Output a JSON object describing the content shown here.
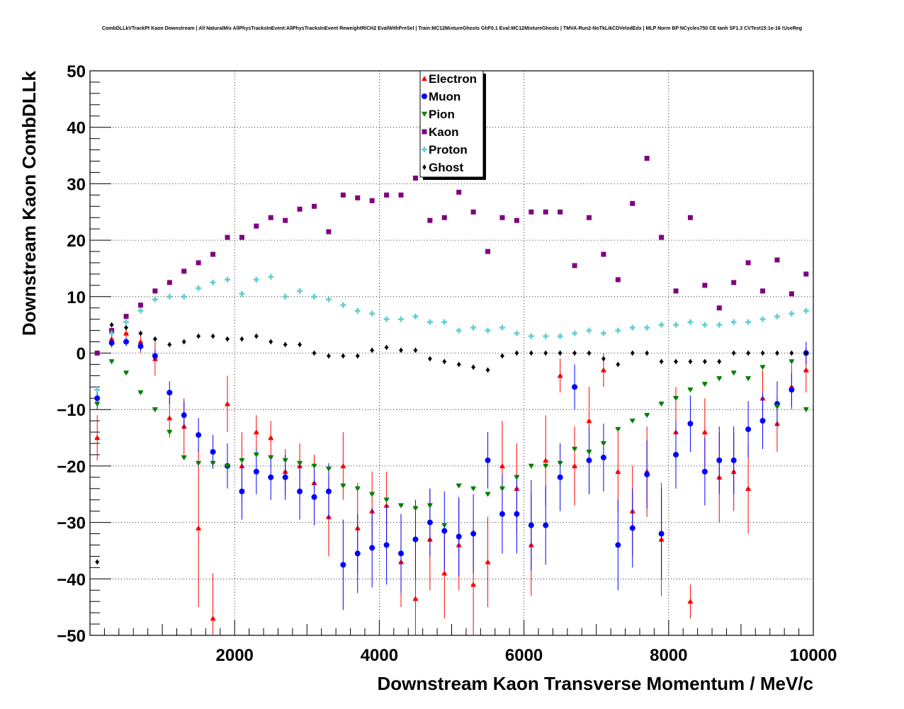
{
  "chart_data": {
    "type": "scatter",
    "title": "CombDLLkVTrackPt Kaon Downstream | All NaturalMix AllPhysTracksInEvent:AllPhysTracksInEvent ReweightRICH2 EvalWithPreSel | Train:MC12MixtureGhosts GhF0.1 Eval:MC12MixtureGhosts | TMVA-Run2-NoTkLikCDVelodEdx | MLP Norm BP NCycles750 CE tanh SF1.3 CVTest15:1e-16 !UseReg",
    "xlabel": "Downstream Kaon Transverse Momentum / MeV/c",
    "ylabel": "Downstream Kaon CombDLLk",
    "xlim": [
      0,
      10000
    ],
    "ylim": [
      -50,
      50
    ],
    "x_ticks": [
      "2000",
      "4000",
      "6000",
      "8000",
      "10000"
    ],
    "y_ticks": [
      "−50",
      "−40",
      "−30",
      "−20",
      "−10",
      "0",
      "10",
      "20",
      "30",
      "40",
      "50"
    ],
    "grid": true,
    "legend_position": "top-center",
    "series": [
      {
        "name": "Electron",
        "color": "#ff0000",
        "marker": "triangle-up",
        "x": [
          100,
          300,
          500,
          700,
          900,
          1100,
          1300,
          1500,
          1700,
          1900,
          2100,
          2300,
          2500,
          2700,
          2900,
          3100,
          3300,
          3500,
          3700,
          3900,
          4100,
          4300,
          4500,
          4700,
          4900,
          5100,
          5300,
          5500,
          5700,
          5900,
          6100,
          6300,
          6500,
          6700,
          6900,
          7100,
          7300,
          7500,
          7700,
          7900,
          8100,
          8300,
          8500,
          8700,
          8900,
          9100,
          9300,
          9500,
          9700,
          9900
        ],
        "y": [
          -15,
          2.5,
          3.5,
          2,
          -1,
          -11.5,
          -13,
          -31,
          -47,
          -9,
          -20,
          -14,
          -15,
          -21,
          -20,
          -23,
          -29,
          -20,
          -31,
          -28,
          -27,
          -37,
          -43.5,
          -33,
          -39,
          -34,
          -41,
          -37,
          -20,
          -24,
          -34,
          -19,
          -4,
          -20,
          -12,
          -3,
          -21,
          -28,
          -21,
          -33,
          -14,
          -44,
          -14,
          -22,
          -21,
          -24,
          -8,
          -12.5,
          -6,
          -3
        ],
        "err": [
          4,
          1.5,
          1,
          2,
          3,
          3.5,
          5,
          14,
          8,
          5,
          6,
          3,
          3,
          4,
          4,
          5,
          7,
          6,
          8,
          7,
          6,
          8,
          10,
          9,
          8,
          8,
          10,
          8,
          8,
          8,
          9,
          8,
          3,
          7,
          6,
          3,
          7,
          8,
          8,
          10,
          8,
          3,
          6,
          8,
          7,
          8,
          5,
          5,
          4,
          4
        ]
      },
      {
        "name": "Muon",
        "color": "#0000ff",
        "marker": "circle",
        "x": [
          100,
          300,
          500,
          700,
          900,
          1100,
          1300,
          1500,
          1700,
          1900,
          2100,
          2300,
          2500,
          2700,
          2900,
          3100,
          3300,
          3500,
          3700,
          3900,
          4100,
          4300,
          4500,
          4700,
          4900,
          5100,
          5300,
          5500,
          5700,
          5900,
          6100,
          6300,
          6500,
          6700,
          6900,
          7100,
          7300,
          7500,
          7700,
          7900,
          8100,
          8300,
          8500,
          8700,
          8900,
          9100,
          9300,
          9500,
          9700,
          9900
        ],
        "y": [
          -8,
          1.8,
          2,
          1.2,
          -0.5,
          -7,
          -11,
          -14.5,
          -17.5,
          -20,
          -24.5,
          -21,
          -22,
          -22,
          -24.5,
          -25.5,
          -24.5,
          -37.5,
          -35.5,
          -34.5,
          -34,
          -35.5,
          -33,
          -30,
          -31.5,
          -32.5,
          -32,
          -19,
          -28.5,
          -28.5,
          -30.5,
          -30.5,
          -22,
          -6,
          -19,
          -18.5,
          -34,
          -31,
          -21.5,
          -32,
          -18,
          -12.5,
          -21,
          -19,
          -19,
          -13.5,
          -12,
          -9,
          -6.5,
          0
        ],
        "err": [
          2,
          0.8,
          0.8,
          0.8,
          1,
          2,
          2.5,
          3,
          3,
          4,
          5,
          4,
          4,
          4,
          5,
          5,
          5,
          8,
          7,
          7,
          7,
          7,
          7,
          6,
          7,
          7,
          7,
          5,
          7,
          7,
          8,
          7,
          6,
          4,
          6,
          6,
          8,
          7,
          6,
          8,
          6,
          5,
          6,
          6,
          6,
          5,
          5,
          4,
          3,
          2
        ]
      },
      {
        "name": "Pion",
        "color": "#008000",
        "marker": "triangle-down",
        "x": [
          100,
          300,
          500,
          700,
          900,
          1100,
          1300,
          1500,
          1700,
          1900,
          2100,
          2300,
          2500,
          2700,
          2900,
          3100,
          3300,
          3500,
          3700,
          3900,
          4100,
          4300,
          4500,
          4700,
          4900,
          5100,
          5300,
          5500,
          5700,
          5900,
          6100,
          6300,
          6500,
          6700,
          6900,
          7100,
          7300,
          7500,
          7700,
          7900,
          8100,
          8300,
          8500,
          8700,
          8900,
          9100,
          9300,
          9500,
          9700,
          9900
        ],
        "y": [
          -9,
          -1.5,
          -3.5,
          -7,
          -10,
          -14,
          -18.5,
          -19.5,
          -19.5,
          -20,
          -19,
          -18,
          -18.5,
          -19,
          -19.5,
          -20,
          -20.5,
          -23.5,
          -24,
          -25,
          -26,
          -27,
          -27.5,
          -27,
          -30.5,
          -23.5,
          -24,
          -25,
          -24,
          -22,
          -20,
          -20,
          -19.5,
          -17,
          -17.5,
          -16,
          -13.5,
          -12,
          -11,
          -9,
          -8,
          -6.5,
          -5.5,
          -4.5,
          -3.5,
          -4.5,
          -2.5,
          -9.5,
          -1.5,
          -10
        ]
      },
      {
        "name": "Kaon",
        "color": "#800080",
        "marker": "square",
        "x": [
          100,
          300,
          500,
          700,
          900,
          1100,
          1300,
          1500,
          1700,
          1900,
          2100,
          2300,
          2500,
          2700,
          2900,
          3100,
          3300,
          3500,
          3700,
          3900,
          4100,
          4300,
          4500,
          4700,
          4900,
          5100,
          5300,
          5500,
          5700,
          5900,
          6100,
          6300,
          6500,
          6700,
          6900,
          7100,
          7300,
          7500,
          7700,
          7900,
          8100,
          8300,
          8500,
          8700,
          8900,
          9100,
          9300,
          9500,
          9700,
          9900
        ],
        "y": [
          0,
          4,
          6.5,
          8.5,
          11,
          12.5,
          14.5,
          16,
          17.5,
          20.5,
          20.5,
          22.5,
          24,
          23.5,
          25.5,
          26,
          21.5,
          28,
          27.5,
          27,
          28,
          28,
          31,
          23.5,
          24,
          28.5,
          25,
          18,
          24,
          23.5,
          25,
          25,
          25,
          15.5,
          24,
          17.5,
          13,
          26.5,
          34.5,
          20.5,
          11,
          24,
          12,
          8,
          12.5,
          16,
          11,
          16.5,
          10.5,
          14
        ]
      },
      {
        "name": "Proton",
        "color": "#5fcfcf",
        "marker": "cross",
        "x": [
          100,
          300,
          500,
          700,
          900,
          1100,
          1300,
          1500,
          1700,
          1900,
          2100,
          2300,
          2500,
          2700,
          2900,
          3100,
          3300,
          3500,
          3700,
          3900,
          4100,
          4300,
          4500,
          4700,
          4900,
          5100,
          5300,
          5500,
          5700,
          5900,
          6100,
          6300,
          6500,
          6700,
          6900,
          7100,
          7300,
          7500,
          7700,
          7900,
          8100,
          8300,
          8500,
          8700,
          8900,
          9100,
          9300,
          9500,
          9700,
          9900
        ],
        "y": [
          -6.5,
          3.5,
          5.5,
          7.5,
          9.5,
          10,
          10,
          11.5,
          12.5,
          13,
          10.5,
          13,
          13.5,
          10,
          11,
          10,
          9.5,
          8.5,
          7.5,
          7,
          6,
          6,
          6.5,
          5.5,
          5.5,
          4,
          4.5,
          4,
          4.5,
          3.5,
          3,
          3,
          3,
          3.5,
          4,
          3.5,
          4,
          4.5,
          4.5,
          5,
          5,
          5.5,
          5,
          5,
          5.5,
          5.5,
          6,
          6.5,
          7,
          7.5
        ]
      },
      {
        "name": "Ghost",
        "color": "#000000",
        "marker": "diamond",
        "x": [
          100,
          300,
          500,
          700,
          900,
          1100,
          1300,
          1500,
          1700,
          1900,
          2100,
          2300,
          2500,
          2700,
          2900,
          3100,
          3300,
          3500,
          3700,
          3900,
          4100,
          4300,
          4500,
          4700,
          4900,
          5100,
          5300,
          5500,
          5700,
          5900,
          6100,
          6300,
          6500,
          6700,
          6900,
          7100,
          7300,
          7500,
          7700,
          7900,
          8100,
          8300,
          8500,
          8700,
          8900,
          9100,
          9300,
          9500,
          9700,
          9900
        ],
        "y": [
          -37,
          5,
          4.5,
          3.5,
          2.5,
          1.5,
          2,
          3,
          3,
          2.5,
          2.5,
          3,
          2,
          1.5,
          1.5,
          0,
          -0.5,
          -0.5,
          -0.5,
          0.5,
          1,
          0.5,
          0.5,
          -1,
          -1.5,
          -2,
          -2.5,
          -3,
          -0.5,
          0,
          0,
          0,
          0,
          0,
          0,
          -1,
          -2,
          0,
          0,
          -1.5,
          -1.5,
          -1.5,
          -1.5,
          -1.5,
          0,
          0,
          0,
          0,
          0,
          0
        ]
      }
    ]
  }
}
